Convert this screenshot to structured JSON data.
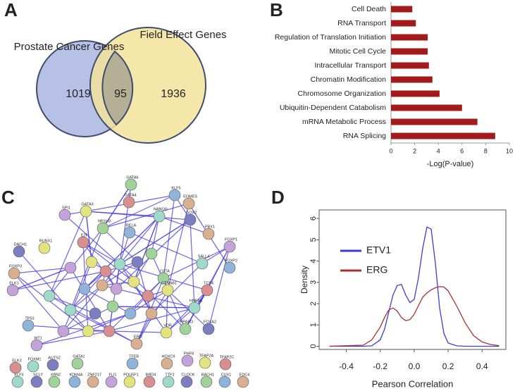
{
  "panel_labels": [
    "A",
    "B",
    "C",
    "D"
  ],
  "venn": {
    "sets": [
      "Prostate Cancer Genes",
      "Field Effect Genes"
    ],
    "counts": [
      1019,
      95,
      1936
    ]
  },
  "chart_data": [
    {
      "type": "bar_h",
      "categories": [
        "Cell Death",
        "RNA Transport",
        "Regulation of Translation Initiation",
        "Mitotic Cell Cycle",
        "Intracellular Transport",
        "Chromatin Modification",
        "Chromosome Organization",
        "Ubiquitin-Dependent Catabolism",
        "mRNA Metabolic Process",
        "RNA Splicing"
      ],
      "values": [
        1.8,
        2.1,
        3.1,
        3.1,
        3.2,
        3.5,
        4.1,
        6.0,
        7.3,
        8.8
      ],
      "color": "#a31a1a",
      "x_label": "-Log(P-value)",
      "xlim": [
        0,
        10
      ],
      "xticks": [
        0,
        2,
        4,
        6,
        8,
        10
      ]
    },
    {
      "type": "line",
      "x_label": "Pearson Correlation",
      "y_label": "Density",
      "x": [
        -0.5,
        -0.3,
        -0.25,
        -0.2,
        -0.175,
        -0.15,
        -0.125,
        -0.1,
        -0.075,
        -0.05,
        -0.025,
        0,
        0.025,
        0.05,
        0.075,
        0.1,
        0.125,
        0.15,
        0.175,
        0.2,
        0.25,
        0.3,
        0.35,
        0.4,
        0.45,
        0.5
      ],
      "series": [
        {
          "name": "ETV1",
          "color": "#3b3bd6",
          "values": [
            0,
            0,
            0.02,
            0.3,
            0.8,
            1.6,
            2.4,
            2.85,
            2.9,
            2.4,
            2.05,
            2.2,
            3.2,
            4.6,
            5.6,
            5.5,
            3.9,
            1.8,
            0.6,
            0.15,
            0.02,
            0,
            0,
            0,
            0,
            0
          ]
        },
        {
          "name": "ERG",
          "color": "#a83232",
          "values": [
            0,
            0.05,
            0.3,
            0.9,
            1.35,
            1.7,
            1.8,
            1.65,
            1.35,
            1.2,
            1.25,
            1.5,
            1.9,
            2.3,
            2.5,
            2.65,
            2.75,
            2.8,
            2.78,
            2.6,
            1.9,
            1.1,
            0.5,
            0.2,
            0.08,
            0.03
          ]
        }
      ],
      "xlim": [
        -0.56,
        0.54
      ],
      "ylim": [
        -0.15,
        6.4
      ],
      "xticks": [
        -0.4,
        -0.2,
        {
          "value": 0,
          "label": "0.0"
        },
        0.2,
        0.4
      ],
      "yticks": [
        0,
        1,
        2,
        3,
        4,
        5,
        6
      ],
      "legend": "upper-left"
    }
  ],
  "network": {
    "nodes": [
      "GATA6",
      "KLF5",
      "EOMES",
      "SPI1",
      "GATA3",
      "GATA4",
      "NANOG",
      "SOX2",
      "NR1H3",
      "RELA",
      "PBX1",
      "FOXP1",
      "RUNX1",
      "E2F",
      "SALL4",
      "DACH1",
      "CIITA",
      "FOXP2",
      "FOXP3",
      "ELK1",
      "CTNNB1",
      "TCF4",
      "HNF4A",
      "FOXA2",
      "PPARD",
      "TP53",
      "ERG",
      "WT1",
      "VDR",
      "ELK3",
      "FOXM1",
      "AUTS2",
      "GATA1",
      "TFEB",
      "HOXC9",
      "PHF8",
      "TFAP2A",
      "TFAP2C",
      "ELF5",
      "SCLY",
      "XRN2",
      "KDM4A",
      "ZNF217",
      "FLI1",
      "POU5F1",
      "BRD4",
      "TTF2",
      "CLOCK",
      "BACH1",
      "CUX1",
      "EDC4"
    ]
  }
}
